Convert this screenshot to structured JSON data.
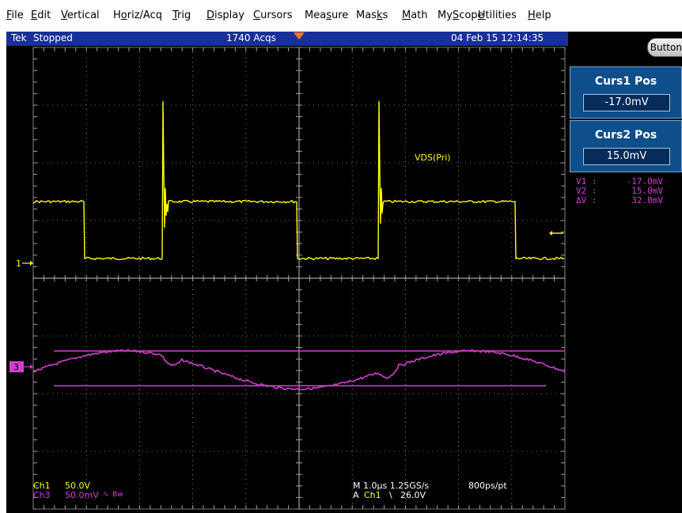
{
  "menu": [
    {
      "label": "File",
      "accel": "F"
    },
    {
      "label": "Edit",
      "accel": "E"
    },
    {
      "label": "Vertical",
      "accel": "V"
    },
    {
      "label": "Horiz/Acq",
      "accel": "o"
    },
    {
      "label": "Trig",
      "accel": "T"
    },
    {
      "label": "Display",
      "accel": "D"
    },
    {
      "label": "Cursors",
      "accel": "C"
    },
    {
      "label": "Measure",
      "accel": "s"
    },
    {
      "label": "Masks",
      "accel": "k"
    },
    {
      "label": "Math",
      "accel": "M"
    },
    {
      "label": "MyScope",
      "accel": "S"
    },
    {
      "label": "Utilities",
      "accel": "U"
    },
    {
      "label": "Help",
      "accel": "H"
    }
  ],
  "status": {
    "brand": "Tek",
    "state": "Stopped",
    "acqs": "1740 Acqs",
    "datetime": "04 Feb 15 12:14:35"
  },
  "side_panel": {
    "buttons_label": "Buttons",
    "curs1": {
      "title": "Curs1 Pos",
      "value": "-17.0mV"
    },
    "curs2": {
      "title": "Curs2 Pos",
      "value": "15.0mV"
    },
    "readouts": [
      {
        "label": "V1 :",
        "value": "-17.0mV"
      },
      {
        "label": "V2 :",
        "value": "15.0mV"
      },
      {
        "label": "ΔV :",
        "value": "32.0mV"
      }
    ]
  },
  "waveform_label": "VDS(Pri)",
  "markers": {
    "ch1": "1",
    "ch3": "3"
  },
  "bottom": {
    "ch1_label": "Ch1",
    "ch1_scale": "50.0V",
    "ch3_label": "Ch3",
    "ch3_scale": "50.0mV",
    "ch3_suffix": "Bw",
    "horiz": "M 1.0µs 1.25GS/s",
    "record": "800ps/pt",
    "trig_prefix": "A",
    "trig_ch": "Ch1",
    "trig_slope": "\\",
    "trig_level": "26.0V"
  },
  "colors": {
    "ch1": "#ffff00",
    "ch3": "#d040d0",
    "grid": "#a0a0a0",
    "status_bg": "#18309a",
    "panel": "#0e4e8a",
    "trig": "#ff7a1a"
  }
}
